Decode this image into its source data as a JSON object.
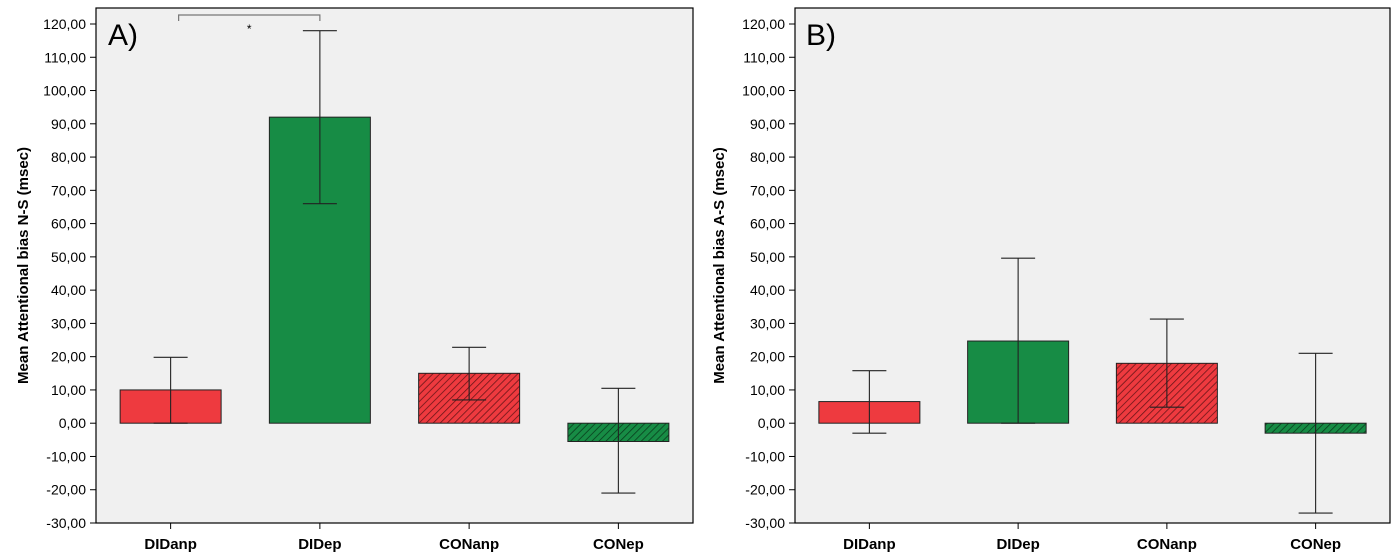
{
  "colors": {
    "red": "#ee3a3f",
    "green": "#178c45",
    "panel_bg": "#f0f0f0",
    "axis": "#000000",
    "bracket": "#777777"
  },
  "chart_data": [
    {
      "type": "bar",
      "panel_label": "A)",
      "ylabel": "Mean Attentional bias N-S (msec)",
      "categories": [
        "DIDanp",
        "DIDep",
        "CONanp",
        "CONep"
      ],
      "values": [
        10.0,
        92.0,
        15.0,
        -5.5
      ],
      "error_low": [
        0.0,
        66.0,
        7.0,
        -21.0
      ],
      "error_high": [
        19.8,
        118.0,
        22.8,
        10.5
      ],
      "bar_colors": [
        "#ee3a3f",
        "#178c45",
        "#ee3a3f",
        "#178c45"
      ],
      "hatched": [
        false,
        false,
        true,
        true
      ],
      "ylim": [
        -30,
        120
      ],
      "yticks": [
        "120,00",
        "110,00",
        "100,00",
        "90,00",
        "80,00",
        "70,00",
        "60,00",
        "50,00",
        "40,00",
        "30,00",
        "20,00",
        "10,00",
        "0,00",
        "-10,00",
        "-20,00",
        "-30,00"
      ],
      "significance": {
        "between": [
          "DIDanp",
          "DIDep"
        ],
        "label": "*"
      },
      "grid": false
    },
    {
      "type": "bar",
      "panel_label": "B)",
      "ylabel": "Mean Attentional bias A-S (msec)",
      "categories": [
        "DIDanp",
        "DIDep",
        "CONanp",
        "CONep"
      ],
      "values": [
        6.5,
        24.7,
        18.0,
        -3.0
      ],
      "error_low": [
        -3.0,
        0.0,
        4.8,
        -27.0
      ],
      "error_high": [
        15.8,
        49.6,
        31.3,
        21.0
      ],
      "bar_colors": [
        "#ee3a3f",
        "#178c45",
        "#ee3a3f",
        "#178c45"
      ],
      "hatched": [
        false,
        false,
        true,
        true
      ],
      "ylim": [
        -30,
        120
      ],
      "yticks": [
        "120,00",
        "110,00",
        "100,00",
        "90,00",
        "80,00",
        "70,00",
        "60,00",
        "50,00",
        "40,00",
        "30,00",
        "20,00",
        "10,00",
        "0,00",
        "-10,00",
        "-20,00",
        "-30,00"
      ],
      "grid": false
    }
  ]
}
